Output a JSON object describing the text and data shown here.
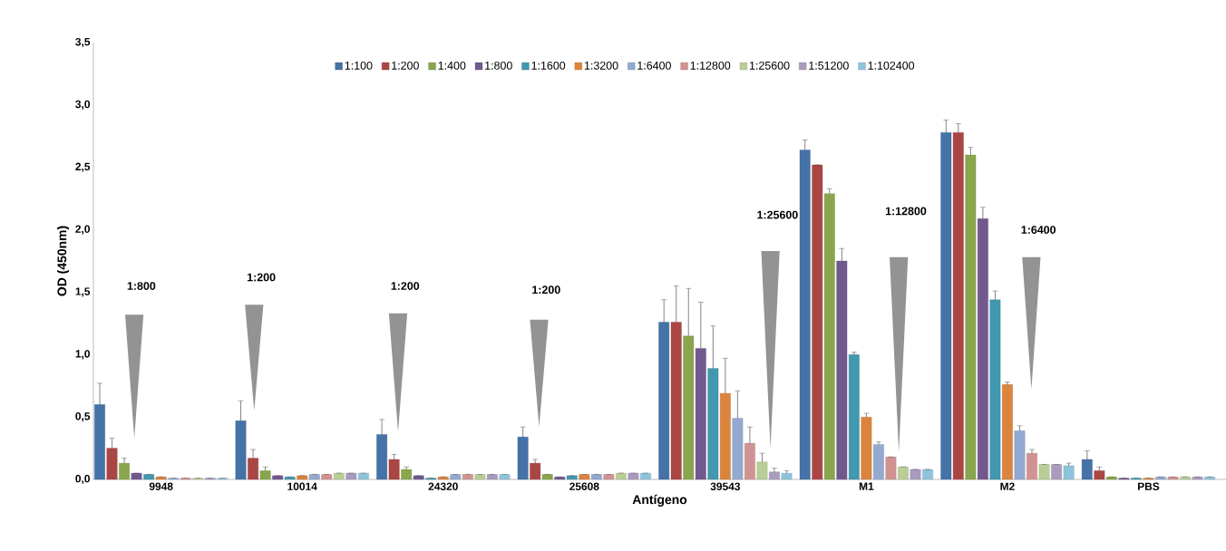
{
  "chart_data": {
    "type": "bar",
    "categories": [
      "9948",
      "10014",
      "24320",
      "25608",
      "39543",
      "M1",
      "M2",
      "PBS"
    ],
    "xlabel": "Antígeno",
    "ylabel": "OD (450nm)",
    "ylim": [
      0,
      3.5
    ],
    "yticks": [
      {
        "value": 0,
        "label": "0,0"
      },
      {
        "value": 0.5,
        "label": "0,5"
      },
      {
        "value": 1,
        "label": "1,0"
      },
      {
        "value": 1.5,
        "label": "1,5"
      },
      {
        "value": 2,
        "label": "2,0"
      },
      {
        "value": 2.5,
        "label": "2,5"
      },
      {
        "value": 3,
        "label": "3,0"
      },
      {
        "value": 3.5,
        "label": "3,5"
      }
    ],
    "grid": false,
    "legend": "top",
    "series": [
      {
        "name": "1:100",
        "color": "#4572a7",
        "values": [
          0.6,
          0.47,
          0.36,
          0.34,
          1.26,
          2.64,
          2.78,
          0.16
        ],
        "errors": [
          0.17,
          0.16,
          0.12,
          0.08,
          0.18,
          0.08,
          0.1,
          0.07
        ]
      },
      {
        "name": "1:200",
        "color": "#aa4643",
        "values": [
          0.25,
          0.17,
          0.16,
          0.13,
          1.26,
          2.52,
          2.78,
          0.07
        ],
        "errors": [
          0.08,
          0.07,
          0.04,
          0.03,
          0.29,
          null,
          0.07,
          0.03
        ]
      },
      {
        "name": "1:400",
        "color": "#89a54e",
        "values": [
          0.13,
          0.07,
          0.08,
          0.04,
          1.15,
          2.29,
          2.6,
          0.02
        ],
        "errors": [
          0.04,
          0.03,
          0.02,
          null,
          0.38,
          0.04,
          0.06,
          null
        ]
      },
      {
        "name": "1:800",
        "color": "#71588f",
        "values": [
          0.05,
          0.03,
          0.03,
          0.02,
          1.05,
          1.75,
          2.09,
          0.01
        ],
        "errors": [
          null,
          null,
          null,
          null,
          0.37,
          0.1,
          0.09,
          null
        ]
      },
      {
        "name": "1:1600",
        "color": "#4198af",
        "values": [
          0.04,
          0.02,
          0.01,
          0.03,
          0.89,
          1.0,
          1.44,
          0.01
        ],
        "errors": [
          null,
          null,
          null,
          null,
          0.34,
          0.02,
          0.07,
          null
        ]
      },
      {
        "name": "1:3200",
        "color": "#db843d",
        "values": [
          0.02,
          0.03,
          0.02,
          0.04,
          0.69,
          0.5,
          0.76,
          0.01
        ],
        "errors": [
          null,
          null,
          null,
          null,
          0.28,
          0.03,
          0.02,
          null
        ]
      },
      {
        "name": "1:6400",
        "color": "#93a9cf",
        "values": [
          0.01,
          0.04,
          0.04,
          0.04,
          0.49,
          0.28,
          0.39,
          0.02
        ],
        "errors": [
          null,
          null,
          null,
          null,
          0.22,
          0.02,
          0.04,
          null
        ]
      },
      {
        "name": "1:12800",
        "color": "#d19392",
        "values": [
          0.01,
          0.04,
          0.04,
          0.04,
          0.29,
          0.18,
          0.21,
          0.02
        ],
        "errors": [
          null,
          null,
          null,
          null,
          0.13,
          null,
          0.03,
          null
        ]
      },
      {
        "name": "1:25600",
        "color": "#b9cd96",
        "values": [
          0.01,
          0.05,
          0.04,
          0.05,
          0.14,
          0.1,
          0.12,
          0.02
        ],
        "errors": [
          null,
          null,
          null,
          null,
          0.07,
          null,
          null,
          null
        ]
      },
      {
        "name": "1:51200",
        "color": "#a99bbd",
        "values": [
          0.01,
          0.05,
          0.04,
          0.05,
          0.06,
          0.08,
          0.12,
          0.02
        ],
        "errors": [
          null,
          null,
          null,
          null,
          0.03,
          null,
          null,
          null
        ]
      },
      {
        "name": "1:102400",
        "color": "#8fc3dc",
        "values": [
          0.01,
          0.05,
          0.04,
          0.05,
          0.05,
          0.08,
          0.11,
          0.02
        ],
        "errors": [
          null,
          null,
          null,
          null,
          0.02,
          null,
          0.02,
          null
        ]
      }
    ],
    "annotations": [
      "1:800",
      "1:200",
      "1:200",
      "1:200",
      "1:25600",
      "1:12800",
      "1:6400"
    ]
  }
}
